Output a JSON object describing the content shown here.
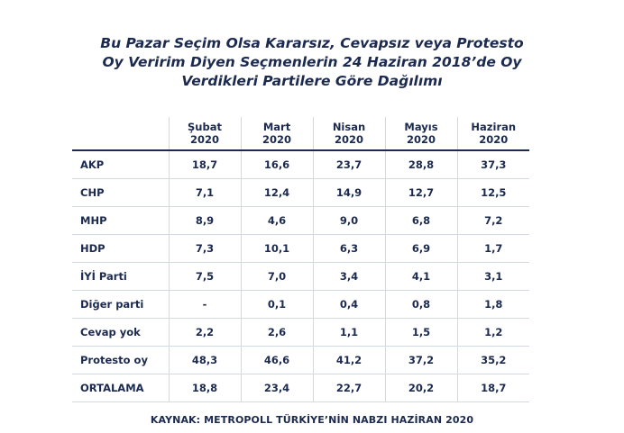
{
  "chart_data": {
    "type": "table",
    "title_lines": [
      "Bu Pazar Seçim Olsa Kararsız, Cevapsız veya Protesto",
      "Oy Veririm Diyen Seçmenlerin 24 Haziran 2018’de Oy",
      "Verdikleri Partilere Göre Dağılımı"
    ],
    "columns": [
      {
        "line1": "Şubat",
        "line2": "2020"
      },
      {
        "line1": "Mart",
        "line2": "2020"
      },
      {
        "line1": "Nisan",
        "line2": "2020"
      },
      {
        "line1": "Mayıs",
        "line2": "2020"
      },
      {
        "line1": "Haziran",
        "line2": "2020"
      }
    ],
    "rows": [
      {
        "label": "AKP",
        "values": [
          "18,7",
          "16,6",
          "23,7",
          "28,8",
          "37,3"
        ]
      },
      {
        "label": "CHP",
        "values": [
          "7,1",
          "12,4",
          "14,9",
          "12,7",
          "12,5"
        ]
      },
      {
        "label": "MHP",
        "values": [
          "8,9",
          "4,6",
          "9,0",
          "6,8",
          "7,2"
        ]
      },
      {
        "label": "HDP",
        "values": [
          "7,3",
          "10,1",
          "6,3",
          "6,9",
          "1,7"
        ]
      },
      {
        "label": "İYİ Parti",
        "values": [
          "7,5",
          "7,0",
          "3,4",
          "4,1",
          "3,1"
        ]
      },
      {
        "label": "Diğer parti",
        "values": [
          "-",
          "0,1",
          "0,4",
          "0,8",
          "1,8"
        ]
      },
      {
        "label": "Cevap yok",
        "values": [
          "2,2",
          "2,6",
          "1,1",
          "1,5",
          "1,2"
        ]
      },
      {
        "label": "Protesto oy",
        "values": [
          "48,3",
          "46,6",
          "41,2",
          "37,2",
          "35,2"
        ]
      },
      {
        "label": "ORTALAMA",
        "values": [
          "18,8",
          "23,4",
          "22,7",
          "20,2",
          "18,7"
        ]
      }
    ],
    "source": "KAYNAK: METROPOLL TÜRKİYE’NİN NABZI HAZİRAN 2020"
  },
  "colors": {
    "text": "#1b2a4e",
    "grid": "#d4d9e1",
    "header_rule": "#1b2a4e",
    "background": "#ffffff"
  }
}
